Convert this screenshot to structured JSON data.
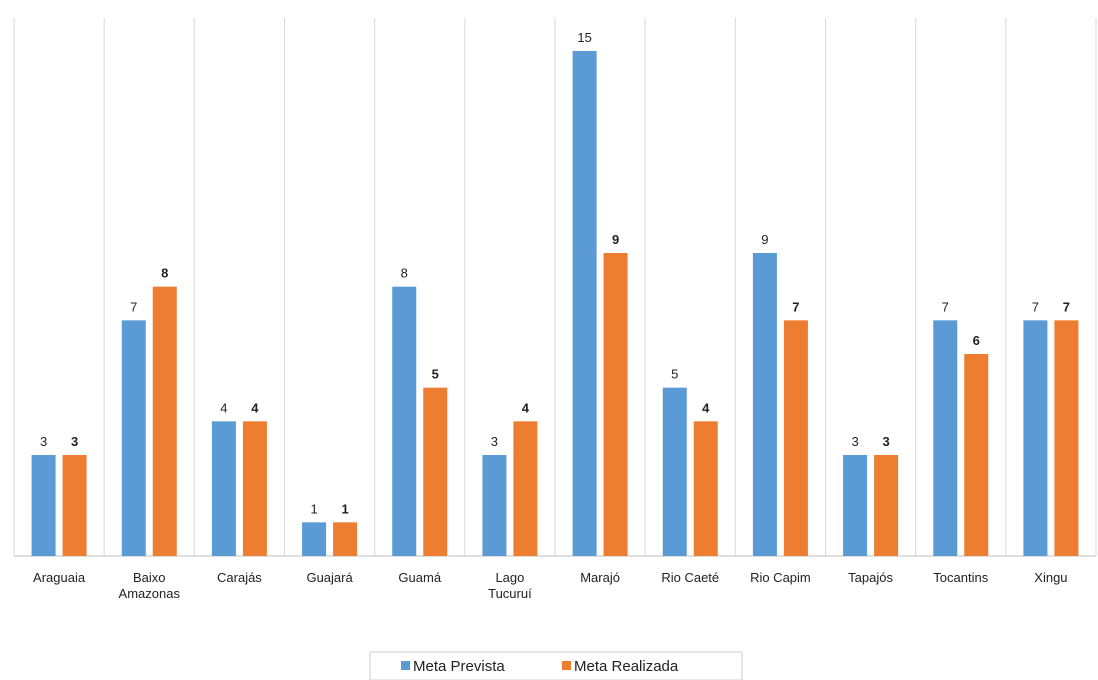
{
  "chart_data": {
    "type": "bar",
    "categories": [
      "Araguaia",
      "Baixo Amazonas",
      "Carajás",
      "Guajará",
      "Guamá",
      "Lago Tucuruí",
      "Marajó",
      "Rio Caeté",
      "Rio Capim",
      "Tapajós",
      "Tocantins",
      "Xingu"
    ],
    "category_lines": [
      [
        "Araguaia"
      ],
      [
        "Baixo",
        "Amazonas"
      ],
      [
        "Carajás"
      ],
      [
        "Guajará"
      ],
      [
        "Guamá"
      ],
      [
        "Lago",
        "Tucuruí"
      ],
      [
        "Marajó"
      ],
      [
        "Rio Caeté"
      ],
      [
        "Rio Capim"
      ],
      [
        "Tapajós"
      ],
      [
        "Tocantins"
      ],
      [
        "Xingu"
      ]
    ],
    "series": [
      {
        "name": "Meta Prevista",
        "values": [
          3,
          7,
          4,
          1,
          8,
          3,
          15,
          5,
          9,
          3,
          7,
          7
        ],
        "color": "#5b9bd5"
      },
      {
        "name": "Meta Realizada",
        "values": [
          3,
          8,
          4,
          1,
          5,
          4,
          9,
          4,
          7,
          3,
          6,
          7
        ],
        "color": "#ed7d31"
      }
    ],
    "ylim": [
      0,
      15
    ],
    "grid": "vertical separators between categories",
    "legend_position": "bottom-center",
    "data_labels": true
  }
}
